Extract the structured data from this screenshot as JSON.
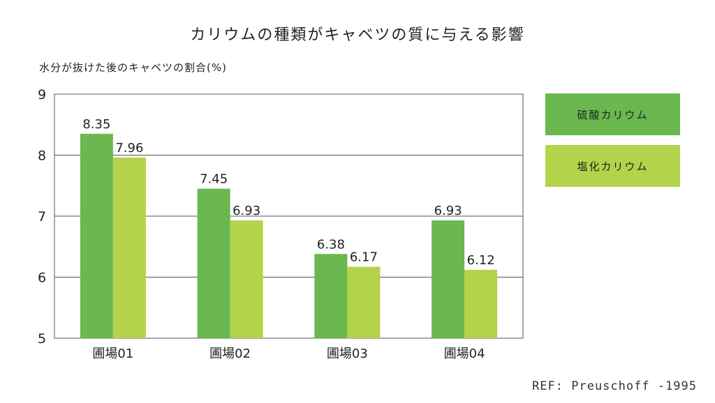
{
  "chart_data": {
    "type": "bar",
    "title": "カリウムの種類がキャベツの質に与える影響",
    "ylabel": "水分が抜けた後のキャベツの割合(%)",
    "xlabel": "",
    "categories": [
      "圃場01",
      "圃場02",
      "圃場03",
      "圃場04"
    ],
    "series": [
      {
        "name": "硫酸カリウム",
        "values": [
          8.35,
          7.45,
          6.38,
          6.93
        ],
        "value_labels": [
          "8.35",
          "7.45",
          "6.38",
          "6.93"
        ],
        "color": "#6ab84f"
      },
      {
        "name": "塩化カリウム",
        "values": [
          7.96,
          6.93,
          6.17,
          6.12
        ],
        "value_labels": [
          "7.96",
          "6.93",
          "6.17",
          "6.12"
        ],
        "color": "#b3d34a"
      }
    ],
    "ylim": [
      5,
      9
    ],
    "yticks": [
      "5",
      "6",
      "7",
      "8",
      "9"
    ],
    "grid": true,
    "legend_position": "right"
  },
  "source": "REF: Preuschoff -1995"
}
